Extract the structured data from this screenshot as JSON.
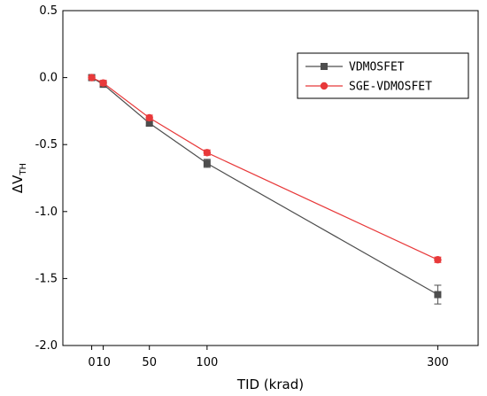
{
  "chart_data": {
    "type": "line",
    "xlabel": "TID (krad)",
    "ylabel": "ΔV",
    "ylabel_sub": "TH",
    "xlim": [
      -25,
      335
    ],
    "ylim": [
      -2.0,
      0.5
    ],
    "x_ticks": [
      0,
      10,
      50,
      100,
      300
    ],
    "x_tick_labels": [
      "0",
      "10",
      "50",
      "100",
      "300"
    ],
    "y_ticks": [
      0.5,
      0.0,
      -0.5,
      -1.0,
      -1.5,
      -2.0
    ],
    "y_tick_labels": [
      "0.5",
      "0.0",
      "-0.5",
      "-1.0",
      "-1.5",
      "-2.0"
    ],
    "legend_position": "top-right",
    "grid": false,
    "series": [
      {
        "name": "VDMOSFET",
        "color": "#4d4d4d",
        "marker": "square",
        "x": [
          0,
          10,
          50,
          100,
          300
        ],
        "y": [
          0.0,
          -0.05,
          -0.34,
          -0.64,
          -1.62
        ],
        "err": [
          0.01,
          0.02,
          0.02,
          0.03,
          0.07
        ]
      },
      {
        "name": "SGE-VDMOSFET",
        "color": "#e8393a",
        "marker": "circle",
        "x": [
          0,
          10,
          50,
          100,
          300
        ],
        "y": [
          0.0,
          -0.04,
          -0.3,
          -0.56,
          -1.36
        ],
        "err": [
          0.01,
          0.02,
          0.02,
          0.02,
          0.02
        ]
      }
    ]
  }
}
